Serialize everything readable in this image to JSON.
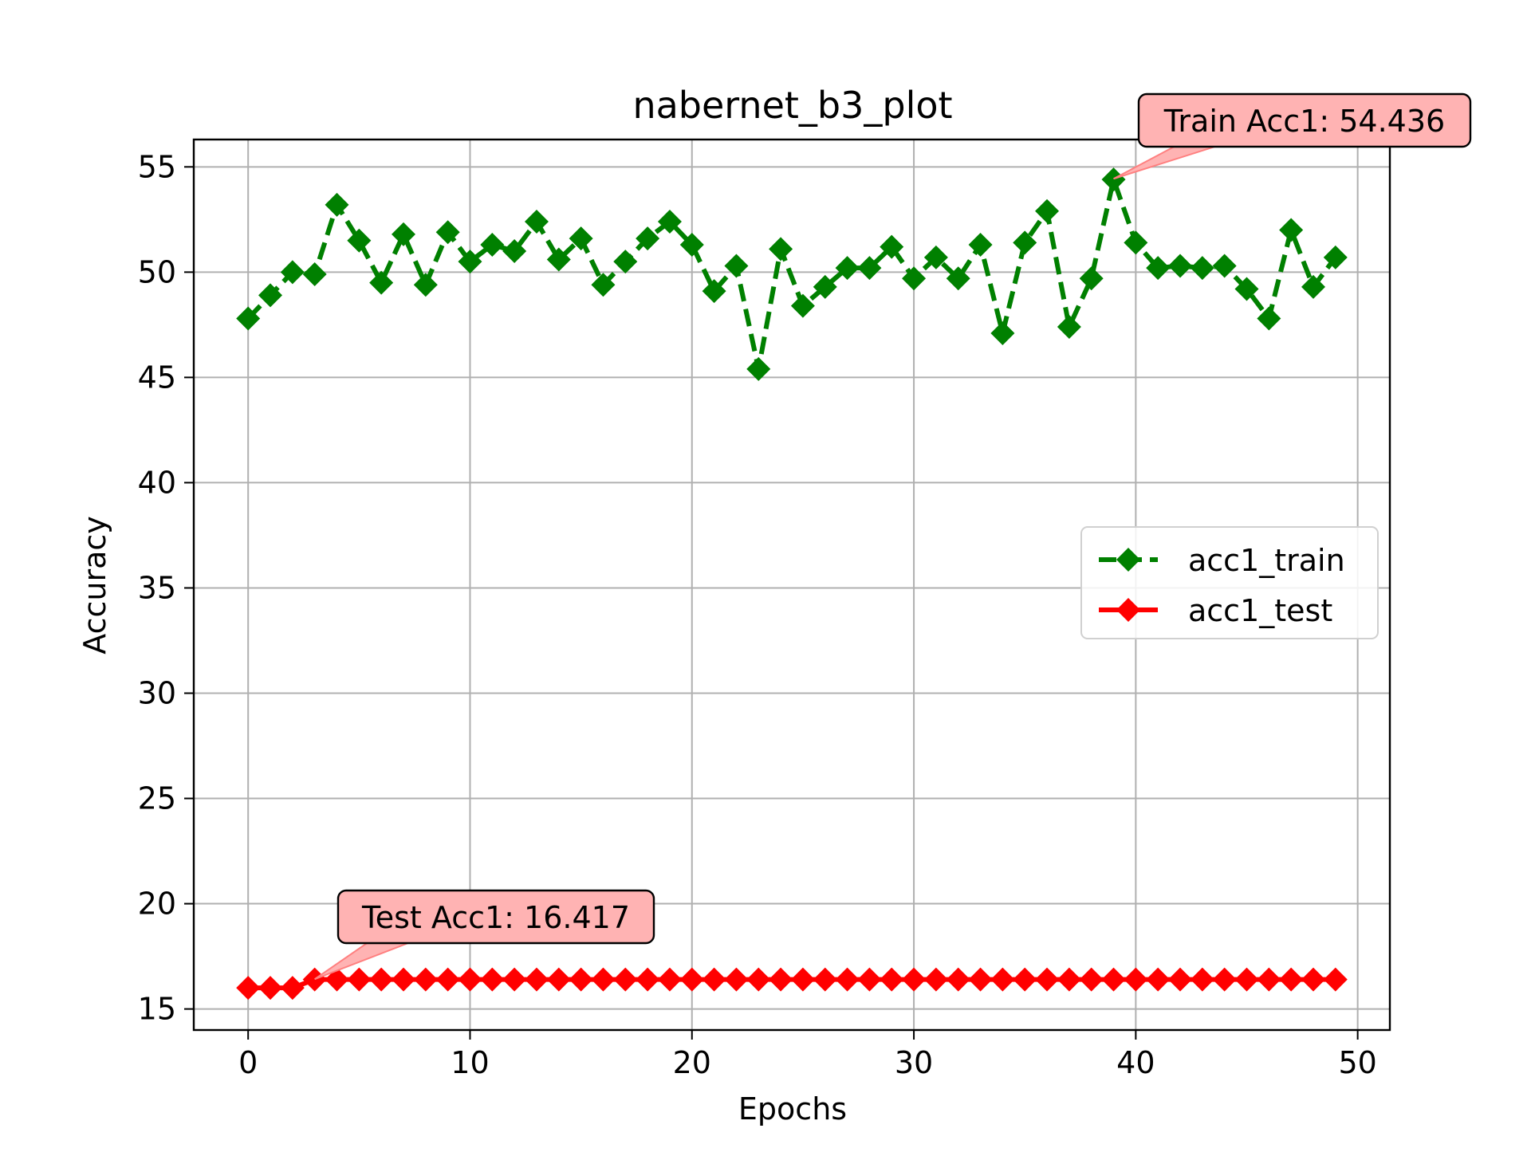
{
  "chart_data": {
    "type": "line",
    "title": "nabernet_b3_plot",
    "xlabel": "Epochs",
    "ylabel": "Accuracy",
    "xlim": [
      -2.45,
      51.45
    ],
    "ylim": [
      14.0,
      56.3
    ],
    "xticks": [
      0,
      10,
      20,
      30,
      40,
      50
    ],
    "yticks": [
      15,
      20,
      25,
      30,
      35,
      40,
      45,
      50,
      55
    ],
    "grid": true,
    "legend_position": "center-right",
    "x": [
      0,
      1,
      2,
      3,
      4,
      5,
      6,
      7,
      8,
      9,
      10,
      11,
      12,
      13,
      14,
      15,
      16,
      17,
      18,
      19,
      20,
      21,
      22,
      23,
      24,
      25,
      26,
      27,
      28,
      29,
      30,
      31,
      32,
      33,
      34,
      35,
      36,
      37,
      38,
      39,
      40,
      41,
      42,
      43,
      44,
      45,
      46,
      47,
      48,
      49
    ],
    "series": [
      {
        "name": "acc1_train",
        "color": "#008000",
        "marker": "diamond",
        "linestyle": "dashed",
        "values": [
          47.8,
          48.9,
          50.0,
          49.9,
          53.2,
          51.5,
          49.5,
          51.8,
          49.4,
          51.9,
          50.5,
          51.3,
          51.0,
          52.4,
          50.6,
          51.6,
          49.4,
          50.5,
          51.6,
          52.4,
          51.3,
          49.1,
          50.3,
          45.4,
          51.1,
          48.4,
          49.3,
          50.2,
          50.2,
          51.2,
          49.7,
          50.7,
          49.7,
          51.3,
          47.1,
          51.4,
          52.9,
          47.4,
          49.7,
          54.4,
          51.4,
          50.2,
          50.3,
          50.2,
          50.3,
          49.2,
          47.8,
          52.0,
          49.3,
          50.7
        ]
      },
      {
        "name": "acc1_test",
        "color": "#ff0000",
        "marker": "diamond",
        "linestyle": "solid",
        "values": [
          16.0,
          16.0,
          16.0,
          16.4,
          16.4,
          16.4,
          16.4,
          16.4,
          16.4,
          16.4,
          16.4,
          16.4,
          16.4,
          16.4,
          16.4,
          16.4,
          16.4,
          16.4,
          16.4,
          16.4,
          16.4,
          16.4,
          16.4,
          16.4,
          16.4,
          16.4,
          16.4,
          16.4,
          16.4,
          16.4,
          16.4,
          16.4,
          16.4,
          16.4,
          16.4,
          16.4,
          16.4,
          16.4,
          16.4,
          16.4,
          16.4,
          16.4,
          16.4,
          16.4,
          16.4,
          16.4,
          16.4,
          16.4,
          16.4,
          16.4
        ]
      }
    ],
    "annotations": [
      {
        "text": "Train Acc1: 54.436",
        "x": 39,
        "y": 54.436
      },
      {
        "text": "Test Acc1: 16.417",
        "x": 3,
        "y": 16.417
      }
    ]
  }
}
